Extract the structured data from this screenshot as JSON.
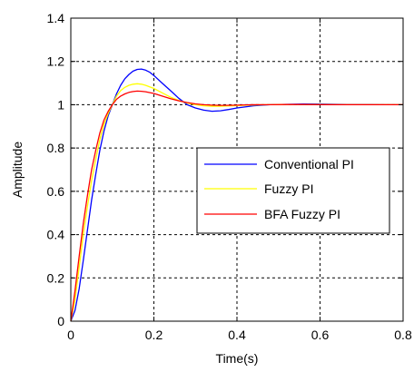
{
  "chart_data": {
    "type": "line",
    "title": "",
    "xlabel": "Time(s)",
    "ylabel": "Amplitude",
    "xlim": [
      0,
      0.8
    ],
    "ylim": [
      0,
      1.4
    ],
    "xticks": [
      "0",
      "0.2",
      "0.4",
      "0.6",
      "0.8"
    ],
    "yticks": [
      "0",
      "0.2",
      "0.4",
      "0.6",
      "0.8",
      "1",
      "1.2",
      "1.4"
    ],
    "grid": true,
    "legend_position": "right",
    "series": [
      {
        "name": "Conventional PI",
        "color": "#0000ff",
        "x": [
          0,
          0.01,
          0.02,
          0.03,
          0.04,
          0.05,
          0.06,
          0.07,
          0.08,
          0.09,
          0.1,
          0.11,
          0.12,
          0.13,
          0.14,
          0.15,
          0.16,
          0.17,
          0.18,
          0.19,
          0.2,
          0.22,
          0.24,
          0.26,
          0.28,
          0.3,
          0.32,
          0.34,
          0.36,
          0.38,
          0.4,
          0.44,
          0.48,
          0.52,
          0.56,
          0.6,
          0.64,
          0.68,
          0.72,
          0.76,
          0.8
        ],
        "y": [
          0,
          0.05,
          0.15,
          0.28,
          0.42,
          0.56,
          0.68,
          0.79,
          0.88,
          0.95,
          1.0,
          1.05,
          1.09,
          1.12,
          1.14,
          1.155,
          1.163,
          1.165,
          1.16,
          1.15,
          1.135,
          1.1,
          1.065,
          1.03,
          1.0,
          0.985,
          0.975,
          0.97,
          0.972,
          0.978,
          0.985,
          0.995,
          1.0,
          1.002,
          1.003,
          1.003,
          1.002,
          1.001,
          1.001,
          1.0,
          1.0
        ]
      },
      {
        "name": "Fuzzy PI",
        "color": "#ffff00",
        "x": [
          0,
          0.01,
          0.02,
          0.03,
          0.04,
          0.05,
          0.06,
          0.07,
          0.08,
          0.09,
          0.1,
          0.11,
          0.12,
          0.13,
          0.14,
          0.15,
          0.16,
          0.17,
          0.18,
          0.2,
          0.22,
          0.24,
          0.26,
          0.28,
          0.3,
          0.32,
          0.34,
          0.36,
          0.4,
          0.44,
          0.48,
          0.52,
          0.56,
          0.6,
          0.64,
          0.68,
          0.72,
          0.76,
          0.8
        ],
        "y": [
          0,
          0.1,
          0.25,
          0.4,
          0.53,
          0.65,
          0.75,
          0.84,
          0.91,
          0.96,
          1.0,
          1.04,
          1.065,
          1.08,
          1.09,
          1.095,
          1.097,
          1.095,
          1.09,
          1.075,
          1.055,
          1.035,
          1.02,
          1.008,
          1.0,
          0.995,
          0.993,
          0.993,
          0.996,
          0.999,
          1.0,
          1.001,
          1.001,
          1.001,
          1.0,
          1.0,
          1.0,
          1.0,
          1.0
        ]
      },
      {
        "name": "BFA Fuzzy PI",
        "color": "#ff0000",
        "x": [
          0,
          0.01,
          0.02,
          0.03,
          0.04,
          0.05,
          0.06,
          0.07,
          0.08,
          0.09,
          0.1,
          0.11,
          0.12,
          0.13,
          0.14,
          0.15,
          0.16,
          0.17,
          0.18,
          0.2,
          0.22,
          0.24,
          0.26,
          0.28,
          0.3,
          0.32,
          0.34,
          0.36,
          0.4,
          0.44,
          0.48,
          0.52,
          0.56,
          0.6,
          0.64,
          0.68,
          0.72,
          0.76,
          0.8
        ],
        "y": [
          0,
          0.14,
          0.3,
          0.45,
          0.58,
          0.7,
          0.79,
          0.87,
          0.93,
          0.97,
          1.0,
          1.025,
          1.04,
          1.05,
          1.057,
          1.061,
          1.063,
          1.062,
          1.06,
          1.052,
          1.04,
          1.028,
          1.018,
          1.01,
          1.004,
          1.0,
          0.998,
          0.997,
          0.998,
          1.0,
          1.0,
          1.001,
          1.001,
          1.0,
          1.0,
          1.0,
          1.0,
          1.0,
          1.0
        ]
      }
    ]
  }
}
